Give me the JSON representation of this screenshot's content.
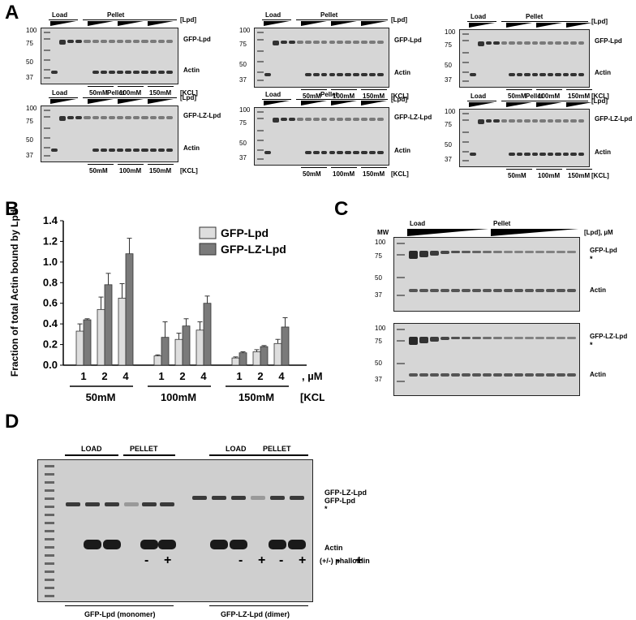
{
  "panelA": {
    "letter": "A",
    "load_label": "Load",
    "pellet_label": "Pellet",
    "lpd_label": "[Lpd]",
    "kcl_label": "[KCL]",
    "salts": [
      "50mM",
      "100mM",
      "150mM"
    ],
    "mw": [
      "100",
      "75",
      "50",
      "37"
    ],
    "top_band": "GFP-Lpd",
    "top_band_lz": "GFP-LZ-Lpd",
    "actin": "Actin"
  },
  "panelB": {
    "letter": "B"
  },
  "panelC": {
    "letter": "C",
    "mw_label": "MW",
    "load_label": "Load",
    "pellet_label": "Pellet",
    "lpd_label": "[Lpd], µM",
    "mw": [
      "100",
      "75",
      "50",
      "37"
    ],
    "gel1_band": "GFP-Lpd",
    "gel2_band": "GFP-LZ-Lpd",
    "actin": "Actin",
    "star": "*"
  },
  "panelD": {
    "letter": "D",
    "load_label": "LOAD",
    "pellet_label": "PELLET",
    "lz_band": "GFP-LZ-Lpd",
    "gfp_band": "GFP-Lpd",
    "star": "*",
    "actin": "Actin",
    "phalloidin": "(+/-) phalloidin",
    "minus": "-",
    "plus": "+",
    "monomer": "GFP-Lpd (monomer)",
    "dimer": "GFP-LZ-Lpd (dimer)"
  },
  "chart_data": {
    "type": "bar",
    "ylabel": "Fraction of total Actin bound by Lpd",
    "ylim": [
      0,
      1.4
    ],
    "yticks": [
      "0.0",
      "0.2",
      "0.4",
      "0.6",
      "0.8",
      "1.0",
      "1.2",
      "1.4"
    ],
    "groups": [
      "50mM",
      "100mM",
      "150mM"
    ],
    "group_axis_label": "[KCL]",
    "categories": [
      "1",
      "2",
      "4",
      "1",
      "2",
      "4",
      "1",
      "2",
      "4"
    ],
    "x_unit_label": ", µM Lpd",
    "series": [
      {
        "name": "GFP-Lpd",
        "color": "#dedede",
        "values": [
          0.33,
          0.54,
          0.65,
          0.09,
          0.25,
          0.34,
          0.07,
          0.13,
          0.21
        ],
        "errors": [
          0.07,
          0.12,
          0.14,
          0.01,
          0.06,
          0.08,
          0.01,
          0.02,
          0.04
        ]
      },
      {
        "name": "GFP-LZ-Lpd",
        "color": "#7a7a7a",
        "values": [
          0.44,
          0.78,
          1.08,
          0.27,
          0.38,
          0.6,
          0.12,
          0.18,
          0.37
        ],
        "errors": [
          0.01,
          0.11,
          0.15,
          0.15,
          0.07,
          0.07,
          0.01,
          0.01,
          0.09
        ]
      }
    ]
  }
}
